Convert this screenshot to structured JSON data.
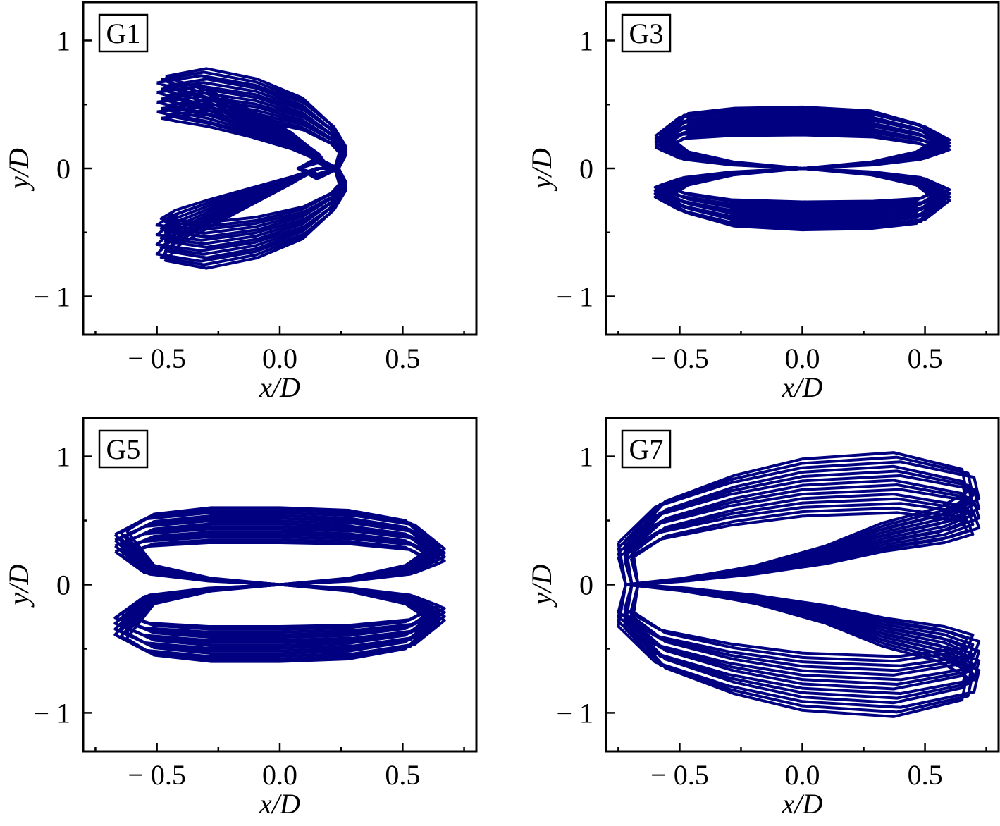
{
  "chart_data": [
    {
      "type": "line",
      "panel": "G1",
      "xlabel": "x/D",
      "ylabel": "y/D",
      "xlim": [
        -0.8,
        0.8
      ],
      "ylim": [
        -1.3,
        1.3
      ],
      "x_ticks": [
        {
          "value": -0.5,
          "label": "− 0.5"
        },
        {
          "value": 0.0,
          "label": "0.0"
        },
        {
          "value": 0.5,
          "label": "0.5"
        }
      ],
      "y_ticks": [
        {
          "value": 1,
          "label": "1"
        },
        {
          "value": 0,
          "label": "0"
        },
        {
          "value": -1,
          "label": "− 1"
        }
      ],
      "color": "#000080",
      "series": [
        {
          "trajectory": "figure-eight crescent orbit",
          "x": [
            -0.5,
            -0.32,
            -0.1,
            0.1,
            0.22,
            0.27,
            0.24,
            0.16,
            0.08,
            0.08,
            0.16,
            0.24,
            0.27,
            0.22,
            0.1,
            -0.1,
            -0.32,
            -0.5,
            -0.44,
            -0.3,
            -0.12,
            0.05,
            0.16,
            0.2,
            0.16,
            0.05,
            -0.12,
            -0.3,
            -0.44,
            -0.5
          ],
          "y": [
            0.72,
            0.78,
            0.7,
            0.55,
            0.35,
            0.18,
            0.0,
            -0.08,
            0.0,
            0.0,
            0.08,
            0.0,
            -0.18,
            -0.35,
            -0.55,
            -0.7,
            -0.78,
            -0.72,
            -0.6,
            -0.45,
            -0.28,
            -0.12,
            0.0,
            0.0,
            0.12,
            0.28,
            0.45,
            0.6,
            0.68,
            0.72
          ]
        }
      ]
    },
    {
      "type": "line",
      "panel": "G3",
      "xlabel": "x/D",
      "ylabel": "y/D",
      "xlim": [
        -0.8,
        0.8
      ],
      "ylim": [
        -1.3,
        1.3
      ],
      "x_ticks": [
        {
          "value": -0.5,
          "label": "− 0.5"
        },
        {
          "value": 0.0,
          "label": "0.0"
        },
        {
          "value": 0.5,
          "label": "0.5"
        }
      ],
      "y_ticks": [
        {
          "value": 1,
          "label": "1"
        },
        {
          "value": 0,
          "label": "0"
        },
        {
          "value": -1,
          "label": "− 1"
        }
      ],
      "color": "#000080",
      "series": [
        {
          "trajectory": "figure-eight orbit",
          "x": [
            -0.6,
            -0.5,
            -0.3,
            0.0,
            0.3,
            0.5,
            0.6,
            0.5,
            0.3,
            0.0,
            -0.3,
            -0.5,
            -0.6,
            -0.5,
            -0.3,
            0.0,
            0.3,
            0.5,
            0.6,
            0.5,
            0.3,
            0.0,
            -0.3,
            -0.5,
            -0.6
          ],
          "y": [
            0.27,
            0.43,
            0.47,
            0.48,
            0.45,
            0.35,
            0.24,
            0.13,
            0.05,
            0.0,
            -0.05,
            -0.13,
            -0.24,
            -0.35,
            -0.45,
            -0.48,
            -0.47,
            -0.43,
            -0.27,
            -0.13,
            -0.05,
            0.0,
            0.05,
            0.13,
            0.27
          ]
        }
      ]
    },
    {
      "type": "line",
      "panel": "G5",
      "xlabel": "x/D",
      "ylabel": "y/D",
      "xlim": [
        -0.8,
        0.8
      ],
      "ylim": [
        -1.3,
        1.3
      ],
      "x_ticks": [
        {
          "value": -0.5,
          "label": "− 0.5"
        },
        {
          "value": 0.0,
          "label": "0.0"
        },
        {
          "value": 0.5,
          "label": "0.5"
        }
      ],
      "y_ticks": [
        {
          "value": 1,
          "label": "1"
        },
        {
          "value": 0,
          "label": "0"
        },
        {
          "value": -1,
          "label": "− 1"
        }
      ],
      "color": "#000080",
      "series": [
        {
          "trajectory": "figure-eight orbit",
          "x": [
            -0.67,
            -0.55,
            -0.3,
            0.0,
            0.3,
            0.55,
            0.67,
            0.55,
            0.3,
            0.0,
            -0.3,
            -0.55,
            -0.67,
            -0.55,
            -0.3,
            0.0,
            0.3,
            0.55,
            0.67,
            0.55,
            0.3,
            0.0,
            -0.3,
            -0.55,
            -0.67
          ],
          "y": [
            0.42,
            0.55,
            0.6,
            0.6,
            0.58,
            0.5,
            0.3,
            0.15,
            0.05,
            0.0,
            -0.05,
            -0.15,
            -0.42,
            -0.55,
            -0.6,
            -0.6,
            -0.58,
            -0.5,
            -0.3,
            -0.15,
            -0.05,
            0.0,
            0.05,
            0.15,
            0.42
          ]
        }
      ]
    },
    {
      "type": "line",
      "panel": "G7",
      "xlabel": "x/D",
      "ylabel": "y/D",
      "xlim": [
        -0.8,
        0.8
      ],
      "ylim": [
        -1.3,
        1.3
      ],
      "x_ticks": [
        {
          "value": -0.5,
          "label": "− 0.5"
        },
        {
          "value": 0.0,
          "label": "0.0"
        },
        {
          "value": 0.5,
          "label": "0.5"
        }
      ],
      "y_ticks": [
        {
          "value": 1,
          "label": "1"
        },
        {
          "value": 0,
          "label": "0"
        },
        {
          "value": -1,
          "label": "− 1"
        }
      ],
      "color": "#000080",
      "series": [
        {
          "trajectory": "figure-eight crescent orbit",
          "x": [
            -0.75,
            -0.6,
            -0.3,
            0.0,
            0.4,
            0.7,
            0.72,
            0.6,
            0.35,
            0.1,
            -0.2,
            -0.5,
            -0.72,
            -0.75,
            -0.6,
            -0.3,
            0.0,
            0.4,
            0.7,
            0.72,
            0.6,
            0.35,
            0.1,
            -0.2,
            -0.5,
            -0.72,
            -0.75
          ],
          "y": [
            0.35,
            0.65,
            0.85,
            0.98,
            1.03,
            0.9,
            0.72,
            0.6,
            0.48,
            0.3,
            0.15,
            0.05,
            0.0,
            -0.35,
            -0.65,
            -0.85,
            -0.98,
            -1.03,
            -0.9,
            -0.72,
            -0.6,
            -0.48,
            -0.3,
            -0.15,
            -0.05,
            0.0,
            0.35
          ]
        }
      ]
    }
  ]
}
